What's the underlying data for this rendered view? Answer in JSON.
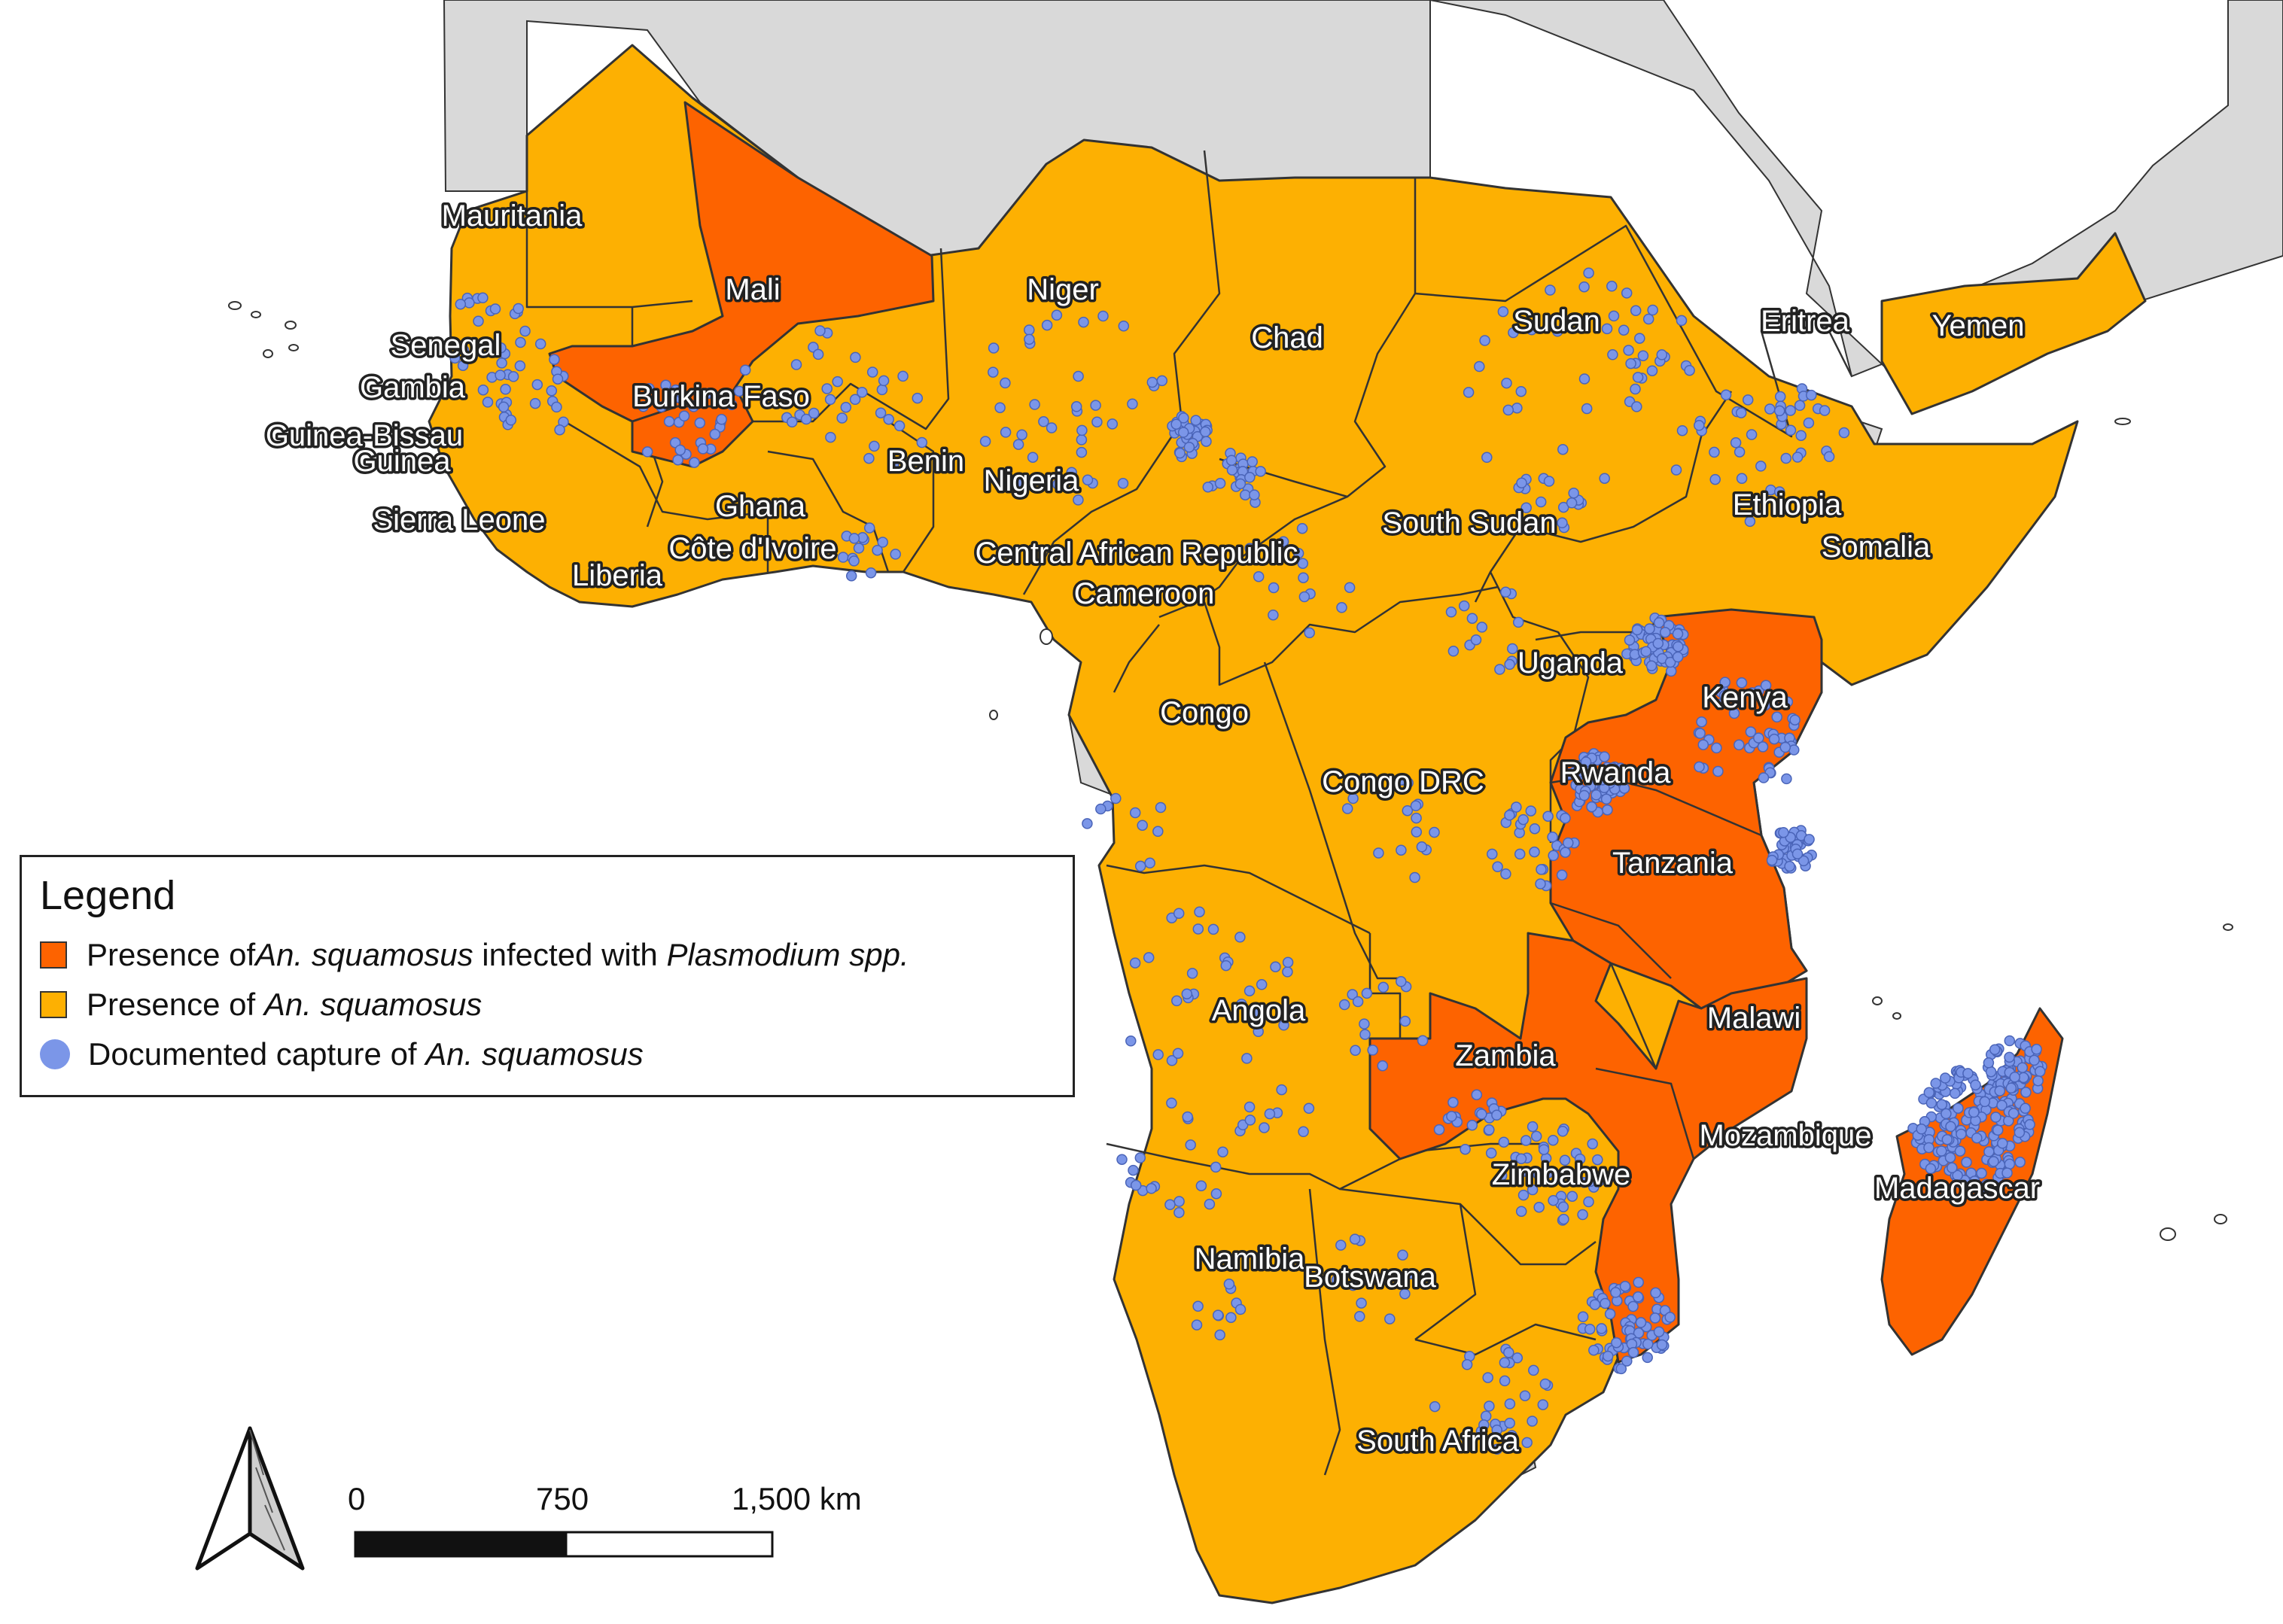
{
  "colors": {
    "infected": "#fd6300",
    "presence": "#fdb002",
    "capture": "#7b96e8",
    "other_land": "#d9d9d9",
    "sea": "#ffffff",
    "border": "#333333"
  },
  "legend": {
    "title": "Legend",
    "items": [
      {
        "pre": "Presence of ",
        "it1": "An. squamosus",
        "mid": " infected with ",
        "it2": "Plasmodium spp.",
        "color_key": "infected"
      },
      {
        "pre": "Presence of ",
        "it1": "An. squamosus",
        "mid": "",
        "it2": "",
        "color_key": "presence"
      },
      {
        "pre": "Documented capture of ",
        "it1": "An. squamosus",
        "mid": "",
        "it2": "",
        "color_key": "capture"
      }
    ]
  },
  "scale_bar": {
    "labels": [
      "0",
      "750",
      "1,500 km"
    ]
  },
  "north_arrow_icon": "north-arrow-icon",
  "countries": [
    {
      "name": "Mauritania",
      "status": "presence"
    },
    {
      "name": "Mali",
      "status": "infected"
    },
    {
      "name": "Niger",
      "status": "presence"
    },
    {
      "name": "Chad",
      "status": "presence"
    },
    {
      "name": "Sudan",
      "status": "presence"
    },
    {
      "name": "Eritrea",
      "status": "presence"
    },
    {
      "name": "Yemen",
      "status": "presence"
    },
    {
      "name": "Senegal",
      "status": "presence"
    },
    {
      "name": "Gambia",
      "status": "presence"
    },
    {
      "name": "Burkina Faso",
      "status": "infected"
    },
    {
      "name": "Guinea-Bissau",
      "status": "presence"
    },
    {
      "name": "Guinea",
      "status": "presence"
    },
    {
      "name": "Benin",
      "status": "presence"
    },
    {
      "name": "Nigeria",
      "status": "presence"
    },
    {
      "name": "Ethiopia",
      "status": "presence"
    },
    {
      "name": "Sierra Leone",
      "status": "presence"
    },
    {
      "name": "Ghana",
      "status": "presence"
    },
    {
      "name": "South Sudan",
      "status": "presence"
    },
    {
      "name": "Somalia",
      "status": "presence"
    },
    {
      "name": "Côte d'Ivoire",
      "status": "presence"
    },
    {
      "name": "Central African Republic",
      "status": "presence"
    },
    {
      "name": "Liberia",
      "status": "presence"
    },
    {
      "name": "Cameroon",
      "status": "presence"
    },
    {
      "name": "Uganda",
      "status": "presence"
    },
    {
      "name": "Kenya",
      "status": "infected"
    },
    {
      "name": "Congo",
      "status": "presence"
    },
    {
      "name": "Congo DRC",
      "status": "presence"
    },
    {
      "name": "Rwanda",
      "status": "infected"
    },
    {
      "name": "Tanzania",
      "status": "infected"
    },
    {
      "name": "Angola",
      "status": "presence"
    },
    {
      "name": "Malawi",
      "status": "infected"
    },
    {
      "name": "Zambia",
      "status": "infected"
    },
    {
      "name": "Mozambique",
      "status": "infected"
    },
    {
      "name": "Zimbabwe",
      "status": "presence"
    },
    {
      "name": "Madagascar",
      "status": "infected"
    },
    {
      "name": "Namibia",
      "status": "presence"
    },
    {
      "name": "Botswana",
      "status": "presence"
    },
    {
      "name": "South Africa",
      "status": "presence"
    }
  ]
}
